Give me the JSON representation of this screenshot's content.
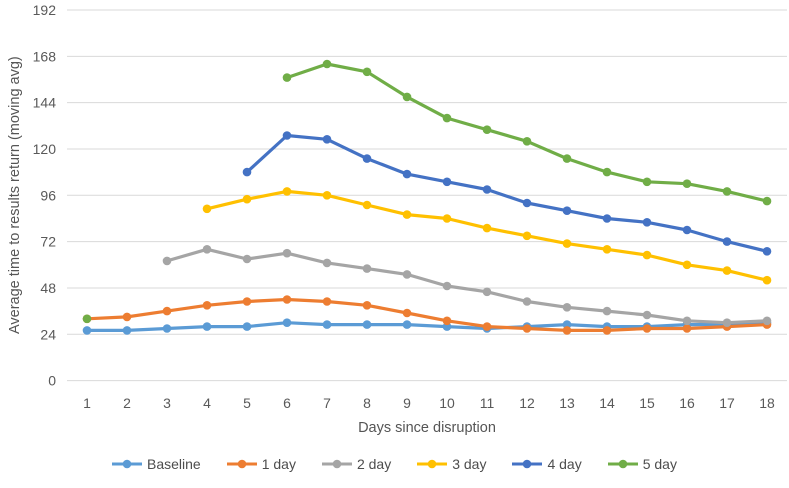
{
  "chart_data": {
    "type": "line",
    "ylabel": "Average time to results return (moving avg)",
    "xlabel": "Days since disruption",
    "ylim": [
      0,
      192
    ],
    "y_ticks": [
      0,
      24,
      48,
      72,
      96,
      120,
      144,
      168,
      192
    ],
    "x_ticks": [
      1,
      2,
      3,
      4,
      5,
      6,
      7,
      8,
      9,
      10,
      11,
      12,
      13,
      14,
      15,
      16,
      17,
      18
    ],
    "grid": true,
    "legend_position": "bottom",
    "gridline_color": "#d9d9d9",
    "tick_label_color": "#595959",
    "series": [
      {
        "name": "Baseline",
        "color": "#5B9BD5",
        "points": [
          [
            1,
            26
          ],
          [
            2,
            26
          ],
          [
            3,
            27
          ],
          [
            4,
            28
          ],
          [
            5,
            28
          ],
          [
            6,
            30
          ],
          [
            7,
            29
          ],
          [
            8,
            29
          ],
          [
            9,
            29
          ],
          [
            10,
            28
          ],
          [
            11,
            27
          ],
          [
            12,
            28
          ],
          [
            13,
            29
          ],
          [
            14,
            28
          ],
          [
            15,
            28
          ],
          [
            16,
            29
          ],
          [
            17,
            29
          ],
          [
            18,
            30
          ]
        ]
      },
      {
        "name": "1 day",
        "color": "#ED7D31",
        "points": [
          [
            1,
            32
          ],
          [
            2,
            33
          ],
          [
            3,
            36
          ],
          [
            4,
            39
          ],
          [
            5,
            41
          ],
          [
            6,
            42
          ],
          [
            7,
            41
          ],
          [
            8,
            39
          ],
          [
            9,
            35
          ],
          [
            10,
            31
          ],
          [
            11,
            28
          ],
          [
            12,
            27
          ],
          [
            13,
            26
          ],
          [
            14,
            26
          ],
          [
            15,
            27
          ],
          [
            16,
            27
          ],
          [
            17,
            28
          ],
          [
            18,
            29
          ]
        ]
      },
      {
        "name": "2 day",
        "color": "#A5A5A5",
        "points": [
          [
            3,
            62
          ],
          [
            4,
            68
          ],
          [
            5,
            63
          ],
          [
            6,
            66
          ],
          [
            7,
            61
          ],
          [
            8,
            58
          ],
          [
            9,
            55
          ],
          [
            10,
            49
          ],
          [
            11,
            46
          ],
          [
            12,
            41
          ],
          [
            13,
            38
          ],
          [
            14,
            36
          ],
          [
            15,
            34
          ],
          [
            16,
            31
          ],
          [
            17,
            30
          ],
          [
            18,
            31
          ]
        ]
      },
      {
        "name": "3 day",
        "color": "#FFC000",
        "points": [
          [
            4,
            89
          ],
          [
            5,
            94
          ],
          [
            6,
            98
          ],
          [
            7,
            96
          ],
          [
            8,
            91
          ],
          [
            9,
            86
          ],
          [
            10,
            84
          ],
          [
            11,
            79
          ],
          [
            12,
            75
          ],
          [
            13,
            71
          ],
          [
            14,
            68
          ],
          [
            15,
            65
          ],
          [
            16,
            60
          ],
          [
            17,
            57
          ],
          [
            18,
            52
          ]
        ]
      },
      {
        "name": "4 day",
        "color": "#4472C4",
        "points": [
          [
            5,
            108
          ],
          [
            6,
            127
          ],
          [
            7,
            125
          ],
          [
            8,
            115
          ],
          [
            9,
            107
          ],
          [
            10,
            103
          ],
          [
            11,
            99
          ],
          [
            12,
            92
          ],
          [
            13,
            88
          ],
          [
            14,
            84
          ],
          [
            15,
            82
          ],
          [
            16,
            78
          ],
          [
            17,
            72
          ],
          [
            18,
            67
          ]
        ]
      },
      {
        "name": "5 day",
        "color": "#70AD47",
        "points": [
          [
            1,
            32
          ],
          [
            6,
            157
          ],
          [
            7,
            164
          ],
          [
            8,
            160
          ],
          [
            9,
            147
          ],
          [
            10,
            136
          ],
          [
            11,
            130
          ],
          [
            12,
            124
          ],
          [
            13,
            115
          ],
          [
            14,
            108
          ],
          [
            15,
            103
          ],
          [
            16,
            102
          ],
          [
            17,
            98
          ],
          [
            18,
            93
          ]
        ]
      }
    ]
  }
}
